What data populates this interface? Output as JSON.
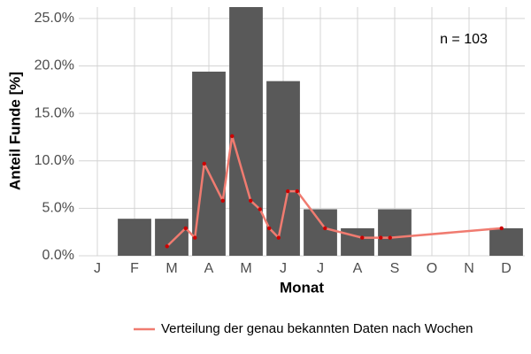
{
  "chart_data": {
    "type": "bar",
    "y_label": "Anteil Funde [%]",
    "x_label": "Monat",
    "annotation": "n = 103",
    "categories": [
      "J",
      "F",
      "M",
      "A",
      "M",
      "J",
      "J",
      "A",
      "S",
      "O",
      "N",
      "D"
    ],
    "values": [
      0,
      3.9,
      3.9,
      19.4,
      26.2,
      18.4,
      4.9,
      2.9,
      4.9,
      0,
      0,
      2.9
    ],
    "color": "#595959",
    "xlim": [
      -0.5,
      11.5
    ],
    "ylim": [
      0,
      26.2
    ],
    "yticks": [
      {
        "value": 0,
        "label": "0.0%"
      },
      {
        "value": 5,
        "label": "5.0%"
      },
      {
        "value": 10,
        "label": "10.0%"
      },
      {
        "value": 15,
        "label": "15.0%"
      },
      {
        "value": 20,
        "label": "20.0%"
      },
      {
        "value": 25,
        "label": "25.0%"
      }
    ],
    "grid": true,
    "legend": "bottom",
    "line": {
      "name": "Verteilung der genau bekannten Daten nach Wochen",
      "color": "#f07b70",
      "point_color": "#cc0000",
      "x": [
        1.875,
        2.375,
        2.625,
        2.875,
        3.375,
        3.625,
        4.125,
        4.375,
        4.625,
        4.875,
        5.125,
        5.375,
        6.125,
        7.125,
        7.625,
        7.875,
        10.875
      ],
      "values": [
        1.0,
        2.9,
        1.9,
        9.7,
        5.8,
        12.6,
        5.8,
        4.9,
        2.9,
        1.9,
        6.8,
        6.8,
        2.9,
        1.9,
        1.9,
        1.9,
        2.9
      ]
    }
  }
}
